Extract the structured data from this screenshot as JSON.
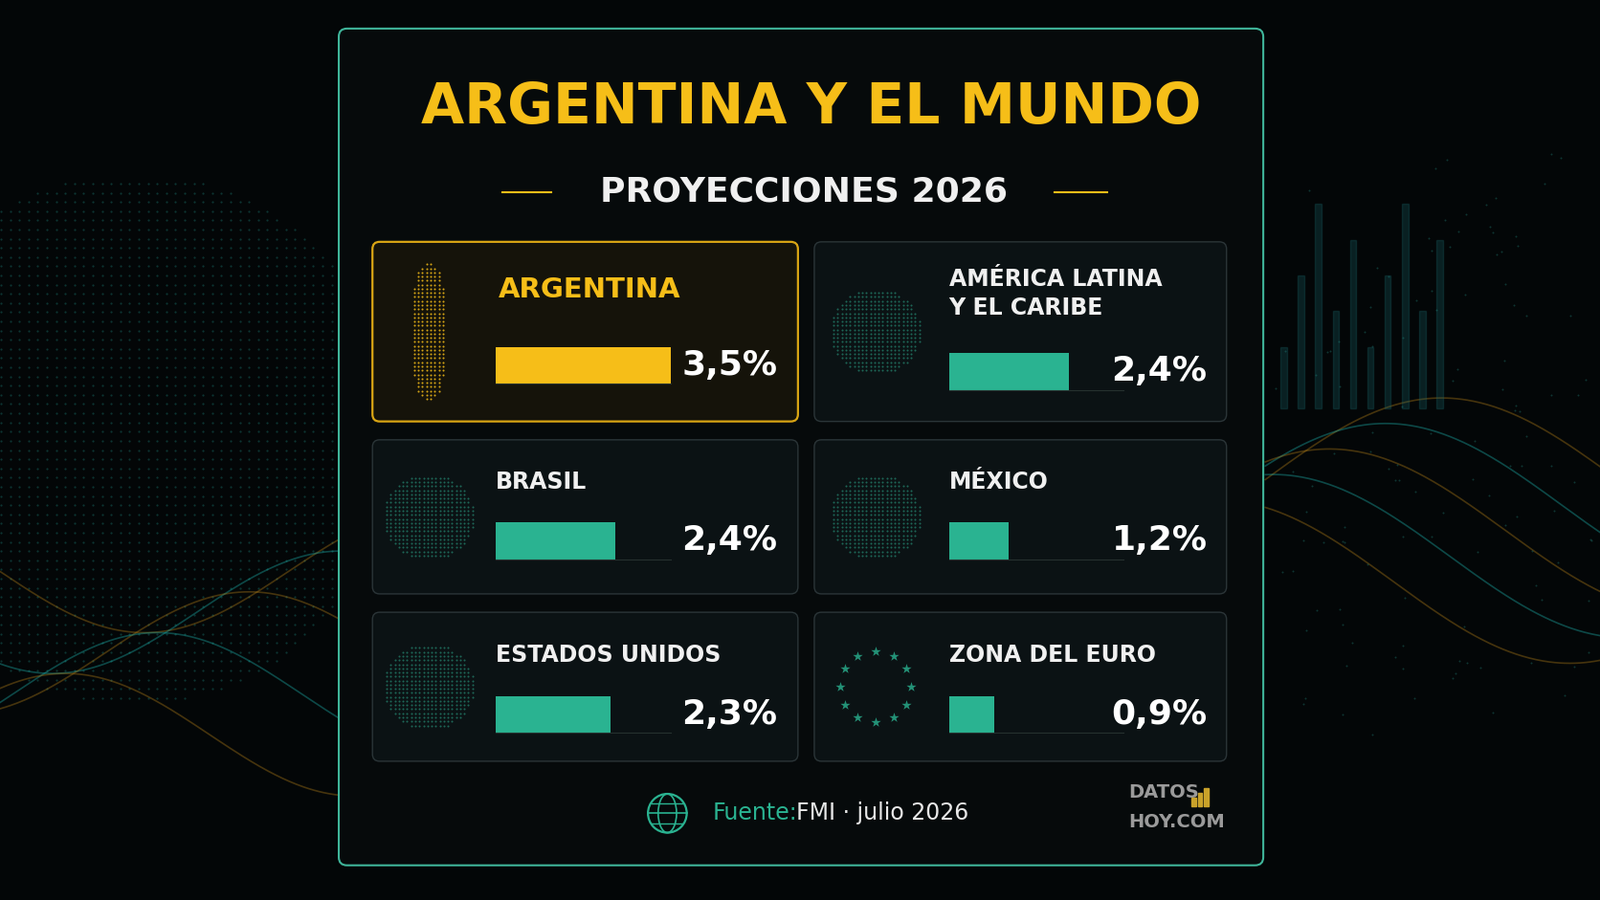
{
  "chart_data": {
    "type": "bar",
    "orientation": "horizontal",
    "title": "ARGENTINA Y EL MUNDO",
    "subtitle": "PROYECCIONES 2026",
    "categories": [
      "ARGENTINA",
      "AMÉRICA LATINA\nY EL CARIBE",
      "BRASIL",
      "MÉXICO",
      "ESTADOS UNIDOS",
      "ZONA DEL EURO"
    ],
    "values": [
      3.5,
      2.4,
      2.4,
      1.2,
      2.3,
      0.9
    ],
    "value_labels": [
      "3,5%",
      "2,4%",
      "2,4%",
      "1,2%",
      "2,3%",
      "0,9%"
    ],
    "colors": [
      "#f6be18",
      "#2ab391",
      "#2ab391",
      "#2ab391",
      "#2ab391",
      "#2ab391"
    ],
    "xlim": [
      0,
      3.5
    ],
    "data_labels": true,
    "tick_labels": false,
    "source_label": "Fuente:",
    "source": "FMI · julio 2026",
    "logo": [
      "DATOS",
      "HOY.COM"
    ]
  }
}
